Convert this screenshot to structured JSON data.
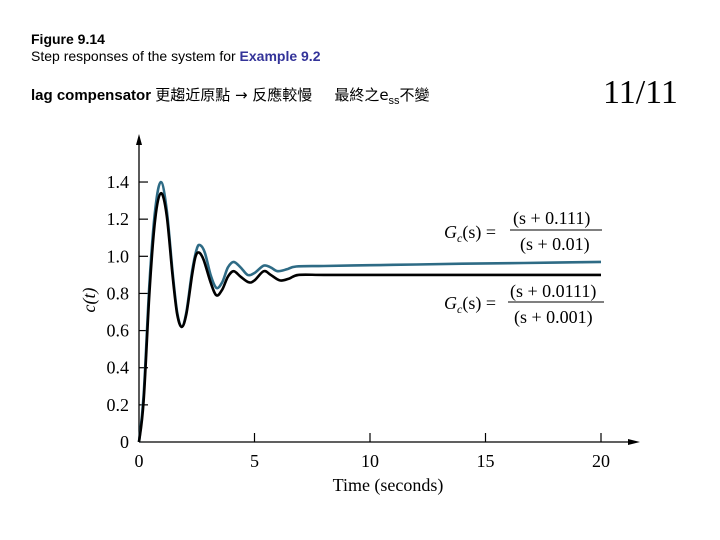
{
  "header": {
    "figure_title": "Figure 9.14",
    "caption_prefix": "Step responses of the system for ",
    "caption_example": "Example 9.2",
    "note_lag": "lag compensator ",
    "note_cjk1": "更趨近原點 → 反應較慢",
    "note_cjk2": "最終之e",
    "note_sub": "ss",
    "note_cjk3": "不變"
  },
  "page_number": "11/11",
  "chart_data": {
    "type": "line",
    "title": "Step responses of the system for Example 9.2",
    "xlabel": "Time (seconds)",
    "ylabel": "c(t)",
    "xlim": [
      0,
      21
    ],
    "ylim": [
      0,
      1.55
    ],
    "x_ticks": [
      0,
      5,
      10,
      15,
      20
    ],
    "x_tick_labels": [
      "0",
      "5",
      "10",
      "15",
      "20"
    ],
    "y_ticks": [
      0,
      0.2,
      0.4,
      0.6,
      0.8,
      1.0,
      1.2,
      1.4
    ],
    "y_tick_labels": [
      "0",
      "0.2",
      "0.4",
      "0.6",
      "0.8",
      "1.0",
      "1.2",
      "1.4"
    ],
    "grid": false,
    "series": [
      {
        "name": "Gc(s) = (s + 0.111)/(s + 0.01)",
        "color": "#2e6b85",
        "points": [
          [
            0,
            0
          ],
          [
            0.2,
            0.25
          ],
          [
            0.45,
            0.85
          ],
          [
            0.7,
            1.25
          ],
          [
            0.95,
            1.4
          ],
          [
            1.2,
            1.25
          ],
          [
            1.45,
            0.92
          ],
          [
            1.65,
            0.7
          ],
          [
            1.85,
            0.62
          ],
          [
            2.05,
            0.7
          ],
          [
            2.3,
            0.92
          ],
          [
            2.5,
            1.04
          ],
          [
            2.65,
            1.06
          ],
          [
            2.85,
            1.02
          ],
          [
            3.1,
            0.9
          ],
          [
            3.35,
            0.83
          ],
          [
            3.6,
            0.86
          ],
          [
            3.85,
            0.94
          ],
          [
            4.1,
            0.97
          ],
          [
            4.4,
            0.94
          ],
          [
            4.7,
            0.9
          ],
          [
            5.0,
            0.91
          ],
          [
            5.4,
            0.95
          ],
          [
            5.7,
            0.94
          ],
          [
            6.0,
            0.92
          ],
          [
            6.4,
            0.93
          ],
          [
            6.8,
            0.945
          ],
          [
            8,
            0.948
          ],
          [
            10,
            0.952
          ],
          [
            12,
            0.956
          ],
          [
            14,
            0.96
          ],
          [
            16,
            0.963
          ],
          [
            18,
            0.966
          ],
          [
            20,
            0.97
          ]
        ]
      },
      {
        "name": "Gc(s) = (s + 0.0111)/(s + 0.001)",
        "color": "#000000",
        "points": [
          [
            0,
            0
          ],
          [
            0.2,
            0.22
          ],
          [
            0.45,
            0.8
          ],
          [
            0.7,
            1.2
          ],
          [
            0.95,
            1.34
          ],
          [
            1.2,
            1.22
          ],
          [
            1.45,
            0.9
          ],
          [
            1.65,
            0.69
          ],
          [
            1.85,
            0.62
          ],
          [
            2.05,
            0.69
          ],
          [
            2.3,
            0.9
          ],
          [
            2.45,
            1.0
          ],
          [
            2.6,
            1.02
          ],
          [
            2.8,
            0.98
          ],
          [
            3.1,
            0.86
          ],
          [
            3.35,
            0.79
          ],
          [
            3.6,
            0.82
          ],
          [
            3.85,
            0.89
          ],
          [
            4.1,
            0.92
          ],
          [
            4.4,
            0.89
          ],
          [
            4.75,
            0.86
          ],
          [
            5.0,
            0.87
          ],
          [
            5.4,
            0.92
          ],
          [
            5.7,
            0.9
          ],
          [
            6.1,
            0.87
          ],
          [
            6.5,
            0.88
          ],
          [
            6.9,
            0.9
          ],
          [
            8,
            0.9
          ],
          [
            10,
            0.9
          ],
          [
            15,
            0.9
          ],
          [
            20,
            0.9
          ]
        ]
      }
    ],
    "annotations": [
      {
        "text": "Gc(s) = (s + 0.111)/(s + 0.01)",
        "target": "upper curve"
      },
      {
        "text": "Gc(s) = (s + 0.0111)/(s + 0.001)",
        "target": "lower curve"
      }
    ]
  },
  "equations": {
    "eq1_lhs": "G",
    "eq1_sub": "c",
    "eq1_rhs": "(s) =",
    "eq1_num": "(s + 0.111)",
    "eq1_den": "(s + 0.01)",
    "eq2_lhs": "G",
    "eq2_sub": "c",
    "eq2_rhs": "(s) =",
    "eq2_num": "(s + 0.0111)",
    "eq2_den": "(s + 0.001)"
  }
}
